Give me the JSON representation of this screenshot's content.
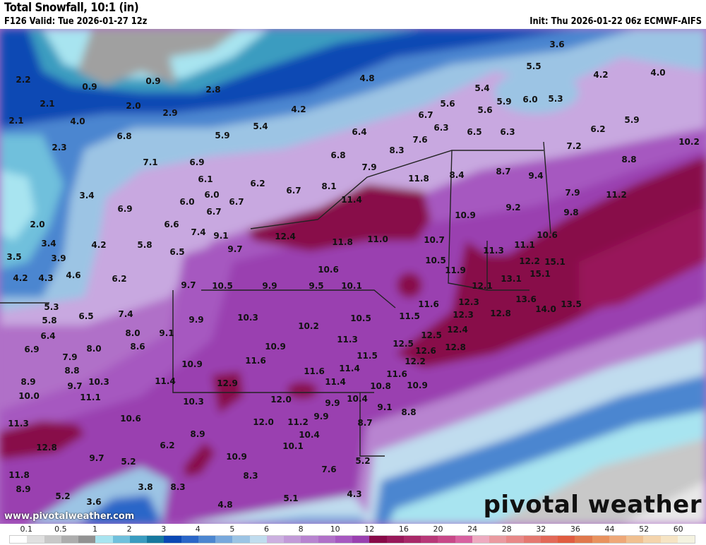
{
  "header": {
    "title": "Total Snowfall, 10:1 (in)",
    "valid": "F126 Valid: Tue 2026-01-27 12z",
    "init": "Init: Thu 2026-01-22 06z ECMWF-AIFS"
  },
  "footer": {
    "url": "www.pivotalweather.com",
    "logo": "pivotal weather"
  },
  "legend": {
    "ticks": [
      "0.1",
      "0.5",
      "1",
      "2",
      "3",
      "4",
      "5",
      "6",
      "8",
      "10",
      "12",
      "16",
      "20",
      "24",
      "28",
      "32",
      "36",
      "44",
      "52",
      "60"
    ],
    "colors": [
      "#ffffff",
      "#e0e0e0",
      "#c8c8c8",
      "#adadad",
      "#929292",
      "#a8e4f0",
      "#70c0dc",
      "#3a9cc0",
      "#16789e",
      "#0a48b4",
      "#2a66c8",
      "#4c86d0",
      "#78a8dc",
      "#9cc4e4",
      "#c0dcee",
      "#ccb0e0",
      "#c29ad8",
      "#b884d0",
      "#b070c8",
      "#a658c0",
      "#9a40b0",
      "#880a48",
      "#98185a",
      "#a82868",
      "#b83878",
      "#c84888",
      "#d862a0",
      "#eeaac0",
      "#ea9aa0",
      "#e88888",
      "#e47870",
      "#e26858",
      "#e05c40",
      "#e0784c",
      "#e8925e",
      "#eea878",
      "#f0c090",
      "#f4d4ac",
      "#f6e4c4",
      "#f4f2e0"
    ]
  },
  "map": {
    "labels": [
      "0.9",
      "0.9",
      "2.2",
      "2.1",
      "2.1",
      "2.0",
      "2.9",
      "2.8",
      "4.0",
      "2.3",
      "6.8",
      "7.1",
      "6.9",
      "6.1",
      "6.0",
      "6.0",
      "6.7",
      "6.7",
      "3.4",
      "6.9",
      "2.0",
      "3.4",
      "3.9",
      "3.5",
      "4.2",
      "4.2",
      "4.3",
      "4.6",
      "6.6",
      "7.4",
      "5.8",
      "6.5",
      "6.2",
      "9.1",
      "9.7",
      "9.7",
      "10.5",
      "4.8",
      "4.2",
      "5.4",
      "5.9",
      "6.4",
      "6.8",
      "7.9",
      "8.3",
      "7.6",
      "6.7",
      "5.6",
      "6.3",
      "6.5",
      "6.2",
      "6.7",
      "8.1",
      "11.4",
      "11.8",
      "8.4",
      "12.4",
      "11.8",
      "11.0",
      "10.7",
      "10.9",
      "10.5",
      "11.9",
      "10.6",
      "9.9",
      "9.5",
      "10.1",
      "3.6",
      "5.5",
      "4.2",
      "4.0",
      "5.4",
      "5.6",
      "5.9",
      "6.0",
      "5.3",
      "6.3",
      "6.2",
      "5.9",
      "7.2",
      "10.2",
      "8.8",
      "8.7",
      "9.4",
      "7.9",
      "11.2",
      "9.2",
      "9.8",
      "10.6",
      "11.1",
      "11.3",
      "12.2",
      "15.1",
      "15.1",
      "13.1",
      "12.1",
      "12.3",
      "12.3",
      "12.8",
      "13.6",
      "14.0",
      "13.5",
      "12.4",
      "12.5",
      "12.5",
      "12.6",
      "12.8",
      "12.2",
      "11.6",
      "11.5",
      "11.6",
      "10.5",
      "5.3",
      "5.8",
      "6.4",
      "6.5",
      "7.4",
      "8.0",
      "9.1",
      "8.6",
      "6.9",
      "7.9",
      "8.0",
      "8.8",
      "8.9",
      "9.7",
      "10.3",
      "10.0",
      "11.1",
      "11.3",
      "12.8",
      "11.8",
      "8.9",
      "5.2",
      "3.6",
      "3.8",
      "9.7",
      "5.2",
      "6.2",
      "10.6",
      "11.4",
      "8.9",
      "8.3",
      "10.3",
      "10.9",
      "9.9",
      "10.3",
      "10.2",
      "10.9",
      "11.3",
      "11.6",
      "11.5",
      "11.6",
      "11.4",
      "12.9",
      "11.4",
      "10.8",
      "10.9",
      "12.0",
      "10.4",
      "9.9",
      "9.1",
      "8.8",
      "12.0",
      "11.2",
      "9.9",
      "8.7",
      "10.4",
      "10.1",
      "10.9",
      "8.3",
      "7.6",
      "5.2",
      "5.1",
      "4.8",
      "4.3"
    ]
  }
}
